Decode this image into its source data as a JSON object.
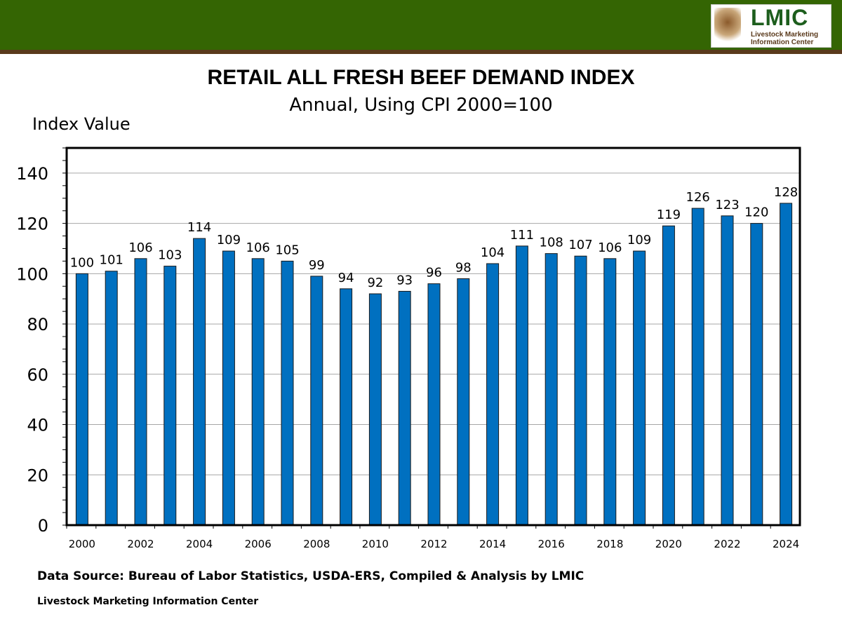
{
  "header": {
    "logo_text": "LMIC",
    "logo_subtext": "Livestock Marketing Information Center",
    "colors": {
      "band": "#346503",
      "strip": "#5a3a1c"
    }
  },
  "chart_data": {
    "type": "bar",
    "title": "RETAIL ALL FRESH BEEF DEMAND INDEX",
    "subtitle": "Annual, Using CPI 2000=100",
    "ylabel": "Index Value",
    "xlabel": "",
    "categories": [
      "2000",
      "2001",
      "2002",
      "2003",
      "2004",
      "2005",
      "2006",
      "2007",
      "2008",
      "2009",
      "2010",
      "2011",
      "2012",
      "2013",
      "2014",
      "2015",
      "2016",
      "2017",
      "2018",
      "2019",
      "2020",
      "2021",
      "2022",
      "2023",
      "2024"
    ],
    "x_tick_labels": [
      "2000",
      "2002",
      "2004",
      "2006",
      "2008",
      "2010",
      "2012",
      "2014",
      "2016",
      "2018",
      "2020",
      "2022",
      "2024"
    ],
    "values": [
      100,
      101,
      106,
      103,
      114,
      109,
      106,
      105,
      99,
      94,
      92,
      93,
      96,
      98,
      104,
      111,
      108,
      107,
      106,
      109,
      119,
      126,
      123,
      120,
      128
    ],
    "data_labels": [
      "100",
      "101",
      "106",
      "103",
      "114",
      "109",
      "106",
      "105",
      "99",
      "94",
      "92",
      "93",
      "96",
      "98",
      "104",
      "111",
      "108",
      "107",
      "106",
      "109",
      "119",
      "126",
      "123",
      "120",
      "128"
    ],
    "ylim": [
      0,
      150
    ],
    "y_ticks": [
      0,
      20,
      40,
      60,
      80,
      100,
      120,
      140
    ],
    "grid": true,
    "bar_color": "#0070c0"
  },
  "source": "Data Source:  Bureau of Labor Statistics, USDA-ERS, Compiled & Analysis by LMIC",
  "footer": "Livestock Marketing Information Center"
}
